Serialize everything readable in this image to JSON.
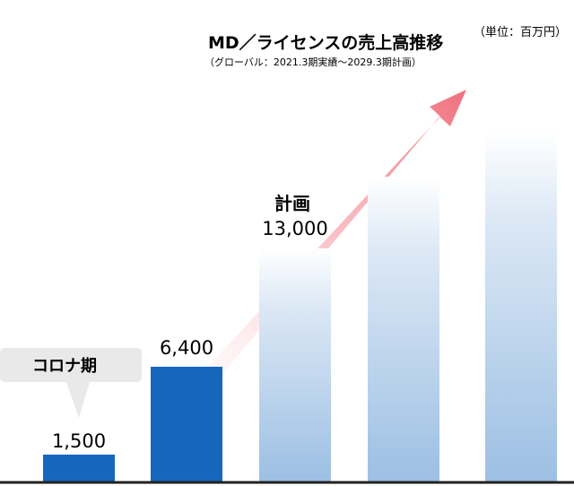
{
  "chart_data": {
    "type": "bar",
    "title": "MD／ライセンスの売上高推移",
    "subtitle": "（グローバル：2021.3期実績～2029.3期計画）",
    "unit_label": "（単位：百万円）",
    "xlabel": "",
    "ylabel": "",
    "categories": [
      "",
      "",
      "",
      "",
      ""
    ],
    "values": [
      1500,
      6400,
      13000,
      17000,
      19500
    ],
    "value_labels": [
      "1,500",
      "6,400",
      "13,000",
      "",
      ""
    ],
    "plan_label": "計画",
    "callout_label": "コロナ期",
    "ylim": [
      0,
      20000
    ],
    "grid": false,
    "legend": "none",
    "colors": {
      "actual": "#1766bd",
      "plan_top": "#ffffff",
      "plan_bottom": "#9cbfe3",
      "arrow_start": "#fde4e6",
      "arrow_end": "#f0707d",
      "callout": "#e9e9e9",
      "baseline": "#222222"
    }
  }
}
